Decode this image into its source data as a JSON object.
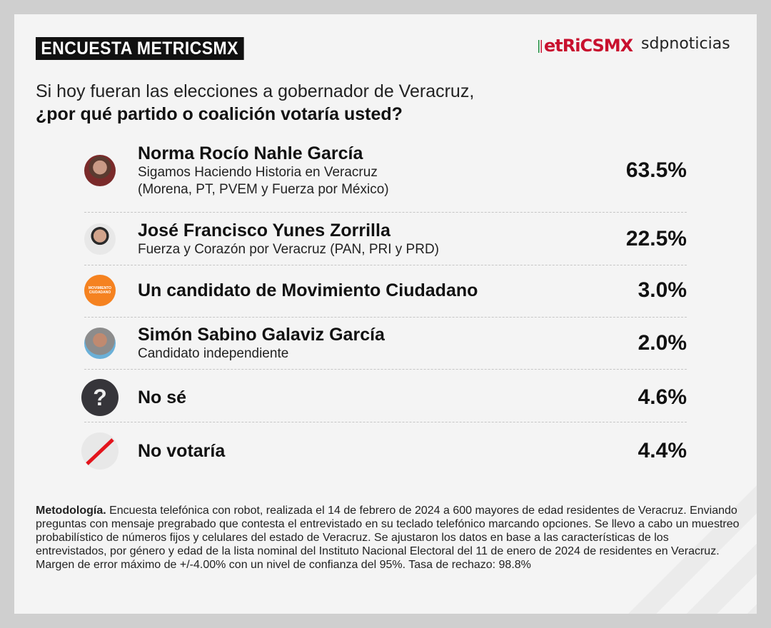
{
  "header": {
    "badge": "ENCUESTA METRICSMX",
    "logo_metrics": "etRiCSMX",
    "logo_sdp": "sdpnoticias"
  },
  "question": {
    "line1": "Si hoy fueran las elecciones a gobernador de Veracruz,",
    "line2": "¿por qué partido o coalición votaría usted?"
  },
  "results": [
    {
      "name": "Norma Rocío Nahle García",
      "sub1": "Sigamos Haciendo Historia en Veracruz",
      "sub2": "(Morena, PT, PVEM y Fuerza por México)",
      "pct": "63.5%",
      "icon": "candidate-photo"
    },
    {
      "name": "José Francisco Yunes Zorrilla",
      "sub1": "Fuerza y Corazón por Veracruz (PAN, PRI y PRD)",
      "pct": "22.5%",
      "icon": "candidate-photo"
    },
    {
      "name": "Un candidato de Movimiento Ciudadano",
      "pct": "3.0%",
      "icon": "movimiento-ciudadano-logo",
      "logo_text": "MOVIMIENTO CIUDADANO",
      "color": "#f58220"
    },
    {
      "name": "Simón Sabino Galaviz García",
      "sub1": "Candidato independiente",
      "pct": "2.0%",
      "icon": "candidate-photo"
    },
    {
      "name": "No sé",
      "pct": "4.6%",
      "icon": "question-mark",
      "glyph": "?"
    },
    {
      "name": "No votaría",
      "pct": "4.4%",
      "icon": "slash",
      "color": "#e3141c"
    }
  ],
  "methodology": {
    "label": "Metodología.",
    "text": " Encuesta telefónica con robot, realizada el 14 de febrero de 2024 a 600 mayores de edad residentes de Veracruz. Enviando preguntas con mensaje pregrabado que contesta el entrevistado en su teclado telefónico marcando opciones. Se llevo a cabo un muestreo probabilístico de números fijos y celulares del estado de Veracruz. Se ajustaron los datos en base a las características de los entrevistados, por género y edad de la lista nominal del Instituto Nacional Electoral del 11 de enero de 2024 de residentes en Veracruz. Margen de error máximo de +/-4.00% con un nivel de confianza del 95%. Tasa de rechazo: 98.8%"
  }
}
